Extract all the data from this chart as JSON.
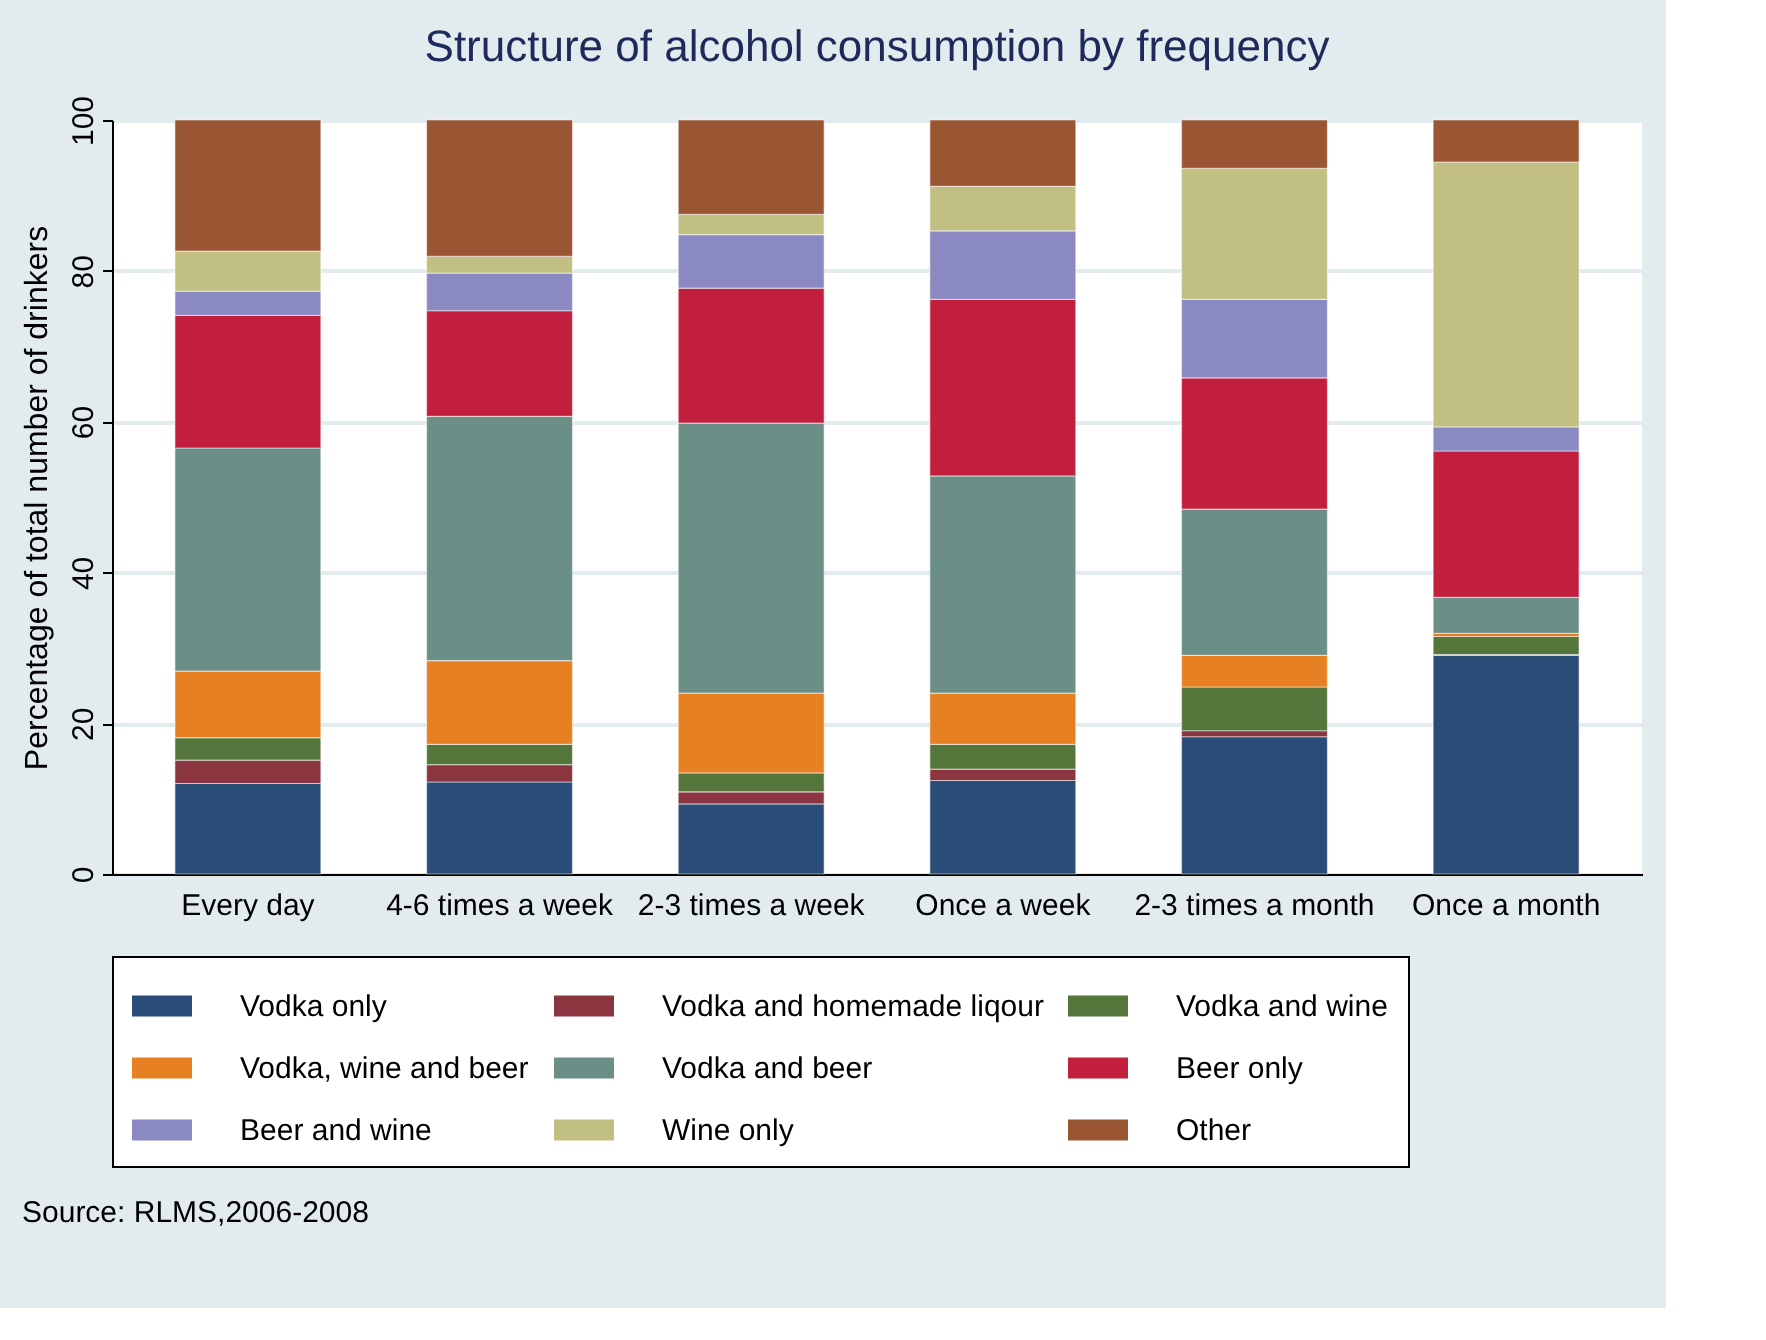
{
  "chart_data": {
    "type": "bar",
    "stacked": true,
    "title": "Structure of alcohol consumption by frequency",
    "ylabel": "Percentage of total number of drinkers",
    "categories": [
      "Every day",
      "4-6 times a week",
      "2-3 times a week",
      "Once a week",
      "2-3 times a month",
      "Once a month"
    ],
    "ylim": [
      0,
      100
    ],
    "yticks": [
      0,
      20,
      40,
      60,
      80,
      100
    ],
    "grid": "y",
    "legend": "bottom",
    "series": [
      {
        "name": "Vodka only",
        "color": "#2a4d78",
        "values": [
          12.0,
          12.2,
          9.3,
          12.4,
          18.2,
          29.0
        ]
      },
      {
        "name": "Vodka and homemade liqour",
        "color": "#8b3540",
        "values": [
          3.1,
          2.3,
          1.6,
          1.5,
          0.8,
          0.1
        ]
      },
      {
        "name": "Vodka and wine",
        "color": "#54763a",
        "values": [
          3.0,
          2.7,
          2.5,
          3.3,
          5.8,
          2.4
        ]
      },
      {
        "name": "Vodka, wine and beer",
        "color": "#e68023",
        "values": [
          8.8,
          11.1,
          10.6,
          6.8,
          4.2,
          0.4
        ]
      },
      {
        "name": "Vodka and beer",
        "color": "#6b8e86",
        "values": [
          29.6,
          32.4,
          35.8,
          28.8,
          19.4,
          4.8
        ]
      },
      {
        "name": "Beer only",
        "color": "#c21f3f",
        "values": [
          17.6,
          14.0,
          17.9,
          23.4,
          17.4,
          19.4
        ]
      },
      {
        "name": "Beer and wine",
        "color": "#8a89c2",
        "values": [
          3.2,
          5.0,
          7.1,
          9.1,
          10.4,
          3.2
        ]
      },
      {
        "name": "Wine only",
        "color": "#c1bf82",
        "values": [
          5.3,
          2.2,
          2.7,
          5.9,
          17.4,
          35.1
        ]
      },
      {
        "name": "Other",
        "color": "#9a5533",
        "values": [
          17.4,
          18.1,
          12.5,
          8.8,
          6.4,
          5.6
        ]
      }
    ],
    "annotations": [
      "Source: RLMS,2006-2008"
    ]
  }
}
